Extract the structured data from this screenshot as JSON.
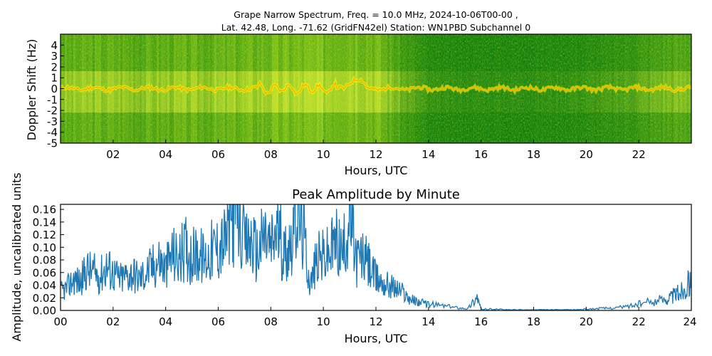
{
  "colors": {
    "line": "#1f77b4",
    "green_dark": "#0a7a0a",
    "yellow": "#ffff00",
    "red": "#ff3300"
  },
  "chart_data": [
    {
      "type": "heatmap",
      "title_line1": "Grape Narrow Spectrum, Freq. = 10.0 MHz, 2024-10-06T00-00 ,",
      "title_line2": "Lat.  42.48, Long. -71.62 (GridFN42el) Station: WN1PBD Subchannel 0",
      "xlabel": "Hours, UTC",
      "ylabel": "Doppler Shift (Hz)",
      "xlim": [
        0,
        24
      ],
      "ylim": [
        -5,
        5
      ],
      "xticks": [
        "02",
        "04",
        "06",
        "08",
        "10",
        "12",
        "14",
        "16",
        "18",
        "20",
        "22"
      ],
      "xtick_values": [
        2,
        4,
        6,
        8,
        10,
        12,
        14,
        16,
        18,
        20,
        22
      ],
      "yticks": [
        "-5",
        "-4",
        "-3",
        "-2",
        "-1",
        "0",
        "1",
        "2",
        "3",
        "4"
      ],
      "ytick_values": [
        -5,
        -4,
        -3,
        -2,
        -1,
        0,
        1,
        2,
        3,
        4
      ],
      "activity_by_hour": [
        0.55,
        0.6,
        0.6,
        0.55,
        0.6,
        0.6,
        0.62,
        0.65,
        0.72,
        0.75,
        0.78,
        0.85,
        0.75,
        0.35,
        0.12,
        0.1,
        0.1,
        0.1,
        0.1,
        0.12,
        0.15,
        0.2,
        0.3,
        0.45,
        0.5
      ],
      "carrier_offset_hz": 0.0
    },
    {
      "type": "line",
      "title": "Peak Amplitude by Minute",
      "xlabel": "Hours, UTC",
      "ylabel": "Amplitude, uncalibrated units",
      "xlim": [
        0,
        24
      ],
      "ylim": [
        0,
        0.168
      ],
      "xticks": [
        "00",
        "02",
        "04",
        "06",
        "08",
        "10",
        "12",
        "14",
        "16",
        "18",
        "20",
        "22",
        "24"
      ],
      "xtick_values": [
        0,
        2,
        4,
        6,
        8,
        10,
        12,
        14,
        16,
        18,
        20,
        22,
        24
      ],
      "yticks": [
        "0.00",
        "0.02",
        "0.04",
        "0.06",
        "0.08",
        "0.10",
        "0.12",
        "0.14",
        "0.16"
      ],
      "ytick_values": [
        0,
        0.02,
        0.04,
        0.06,
        0.08,
        0.1,
        0.12,
        0.14,
        0.16
      ],
      "series": [
        {
          "name": "peak amplitude",
          "x": [
            0.0,
            0.25,
            0.5,
            0.75,
            1.0,
            1.25,
            1.5,
            1.75,
            2.0,
            2.25,
            2.5,
            2.75,
            3.0,
            3.25,
            3.5,
            3.75,
            4.0,
            4.25,
            4.5,
            4.75,
            5.0,
            5.25,
            5.5,
            5.75,
            6.0,
            6.25,
            6.5,
            6.7,
            7.0,
            7.25,
            7.5,
            7.75,
            8.0,
            8.25,
            8.5,
            8.75,
            9.0,
            9.25,
            9.5,
            9.75,
            10.0,
            10.25,
            10.5,
            10.75,
            11.0,
            11.25,
            11.5,
            11.75,
            12.0,
            12.25,
            12.5,
            12.75,
            13.0,
            13.25,
            13.5,
            13.75,
            14.0,
            14.5,
            15.0,
            15.5,
            15.85,
            16.0,
            16.5,
            17.0,
            17.5,
            18.0,
            18.5,
            19.0,
            19.5,
            20.0,
            20.5,
            21.0,
            21.5,
            22.0,
            22.5,
            23.0,
            23.25,
            23.5,
            23.75,
            24.0
          ],
          "y": [
            0.03,
            0.035,
            0.05,
            0.045,
            0.065,
            0.06,
            0.055,
            0.07,
            0.06,
            0.05,
            0.055,
            0.06,
            0.05,
            0.06,
            0.07,
            0.08,
            0.065,
            0.09,
            0.08,
            0.1,
            0.085,
            0.09,
            0.08,
            0.095,
            0.1,
            0.11,
            0.14,
            0.165,
            0.1,
            0.11,
            0.09,
            0.12,
            0.1,
            0.13,
            0.09,
            0.11,
            0.16,
            0.12,
            0.04,
            0.08,
            0.085,
            0.09,
            0.11,
            0.09,
            0.15,
            0.08,
            0.085,
            0.07,
            0.05,
            0.045,
            0.04,
            0.035,
            0.03,
            0.02,
            0.015,
            0.012,
            0.01,
            0.008,
            0.005,
            0.003,
            0.022,
            0.002,
            0.002,
            0.001,
            0.001,
            0.001,
            0.001,
            0.001,
            0.001,
            0.002,
            0.003,
            0.004,
            0.006,
            0.01,
            0.014,
            0.018,
            0.022,
            0.028,
            0.035,
            0.048
          ]
        }
      ]
    }
  ]
}
